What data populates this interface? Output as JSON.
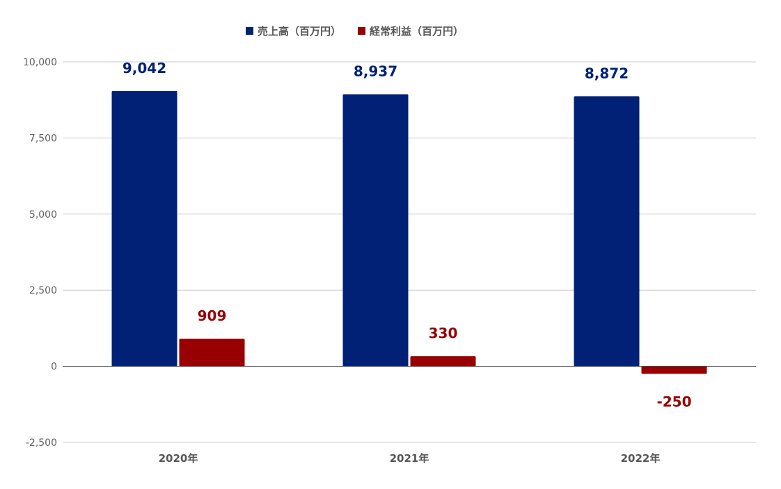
{
  "chart_data": {
    "type": "bar",
    "categories": [
      "2020年",
      "2021年",
      "2022年"
    ],
    "series": [
      {
        "name": "売上高（百万円）",
        "values": [
          9042,
          8937,
          8872
        ],
        "labels": [
          "9,042",
          "8,937",
          "8,872"
        ],
        "color": "#002176"
      },
      {
        "name": "経常利益（百万円）",
        "values": [
          909,
          330,
          -250
        ],
        "labels": [
          "909",
          "330",
          "-250"
        ],
        "color": "#990000"
      }
    ],
    "ylim": [
      -2500,
      10000
    ],
    "yticks": [
      -2500,
      0,
      2500,
      5000,
      7500,
      10000
    ],
    "ytick_labels": [
      "-2,500",
      "0",
      "2,500",
      "5,000",
      "7,500",
      "10,000"
    ],
    "grid": true,
    "legend_position": "top"
  }
}
